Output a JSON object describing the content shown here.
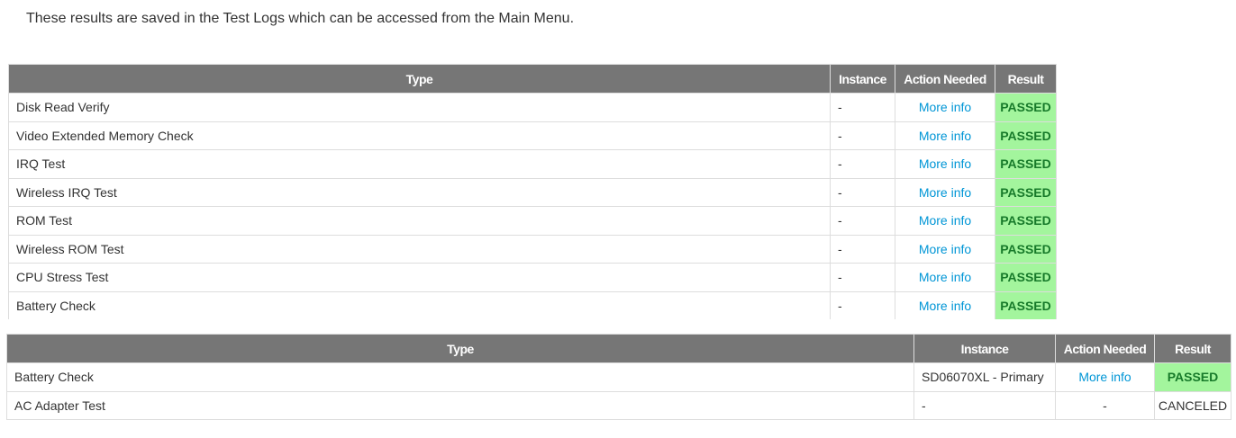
{
  "intro": "These results are saved in the Test Logs which can be accessed from the Main Menu.",
  "columns": [
    "Type",
    "Instance",
    "Action Needed",
    "Result"
  ],
  "colors": {
    "header": "#767676",
    "link": "#0096d6",
    "passed_bg": "#a3f59d",
    "passed_text": "#177a2a"
  },
  "table1": [
    {
      "type": "Disk Read Verify",
      "instance": "-",
      "action": "More info",
      "result": "PASSED"
    },
    {
      "type": "Video Extended Memory Check",
      "instance": "-",
      "action": "More info",
      "result": "PASSED"
    },
    {
      "type": "IRQ Test",
      "instance": "-",
      "action": "More info",
      "result": "PASSED"
    },
    {
      "type": "Wireless IRQ Test",
      "instance": "-",
      "action": "More info",
      "result": "PASSED"
    },
    {
      "type": "ROM Test",
      "instance": "-",
      "action": "More info",
      "result": "PASSED"
    },
    {
      "type": "Wireless ROM Test",
      "instance": "-",
      "action": "More info",
      "result": "PASSED"
    },
    {
      "type": "CPU Stress Test",
      "instance": "-",
      "action": "More info",
      "result": "PASSED"
    },
    {
      "type": "Battery Check",
      "instance": "-",
      "action": "More info",
      "result": "PASSED"
    }
  ],
  "table2": [
    {
      "type": "Battery Check",
      "instance": "SD06070XL - Primary",
      "action": "More info",
      "result": "PASSED"
    },
    {
      "type": "AC Adapter Test",
      "instance": "-",
      "action": "-",
      "result": "CANCELED"
    }
  ]
}
